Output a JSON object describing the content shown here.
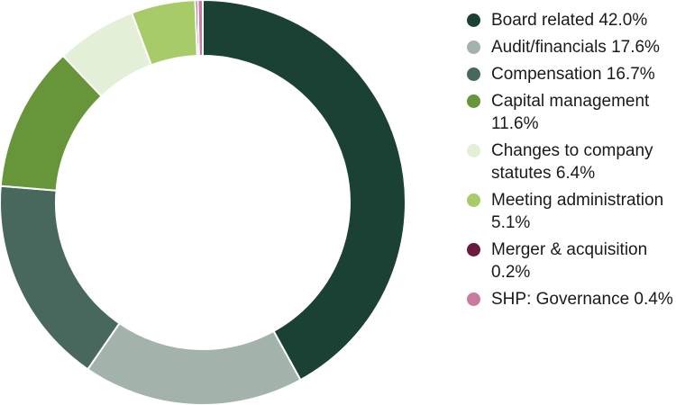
{
  "chart_data": {
    "type": "pie",
    "title": "",
    "legend_position": "right",
    "style": "donut",
    "categories": [
      "Board related",
      "Audit/financials",
      "Compensation",
      "Capital management",
      "Changes to company statutes",
      "Meeting administration",
      "Merger & acquisition",
      "SHP: Governance"
    ],
    "values": [
      42.0,
      17.6,
      16.7,
      11.6,
      6.4,
      5.1,
      0.2,
      0.4
    ],
    "value_suffix": "%",
    "colors": [
      "#1b4034",
      "#a3b2ab",
      "#48685d",
      "#67953a",
      "#e3efd6",
      "#a8cb6a",
      "#6a1a3f",
      "#c87b9e"
    ],
    "legend": [
      {
        "label": "Board related 42.0%",
        "color": "#1b4034"
      },
      {
        "label": "Audit/financials 17.6%",
        "color": "#a3b2ab"
      },
      {
        "label": "Compensation 16.7%",
        "color": "#48685d"
      },
      {
        "label": "Capital management 11.6%",
        "color": "#67953a"
      },
      {
        "label": "Changes to company statutes 6.4%",
        "color": "#e3efd6"
      },
      {
        "label": "Meeting administration 5.1%",
        "color": "#a8cb6a"
      },
      {
        "label": "Merger & acquisition 0.2%",
        "color": "#6a1a3f"
      },
      {
        "label": "SHP: Governance 0.4%",
        "color": "#c87b9e"
      }
    ]
  }
}
